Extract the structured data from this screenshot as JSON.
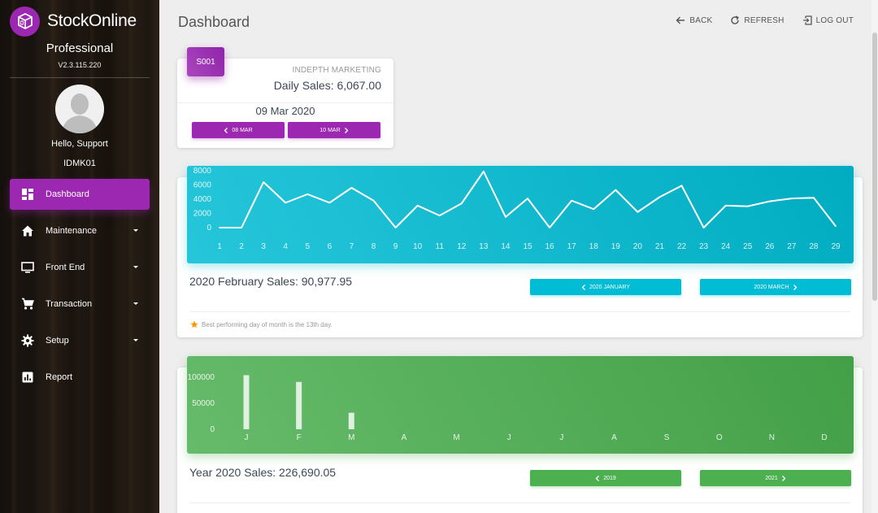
{
  "app": {
    "name": "StockOnline",
    "edition": "Professional",
    "version": "V2.3.115.220",
    "user_greeting": "Hello, Support",
    "user_id": "IDMK01"
  },
  "nav": {
    "items": [
      {
        "label": "Dashboard",
        "icon": "dashboard-icon",
        "active": true,
        "has_submenu": false
      },
      {
        "label": "Maintenance",
        "icon": "home-icon",
        "active": false,
        "has_submenu": true
      },
      {
        "label": "Front End",
        "icon": "monitor-icon",
        "active": false,
        "has_submenu": true
      },
      {
        "label": "Transaction",
        "icon": "cart-icon",
        "active": false,
        "has_submenu": true
      },
      {
        "label": "Setup",
        "icon": "gear-icon",
        "active": false,
        "has_submenu": true
      },
      {
        "label": "Report",
        "icon": "bar-chart-icon",
        "active": false,
        "has_submenu": false
      }
    ]
  },
  "header": {
    "title": "Dashboard",
    "actions": {
      "back": "BACK",
      "refresh": "REFRESH",
      "logout": "LOG OUT"
    }
  },
  "store": {
    "code": "S001",
    "name": "INDEPTH MARKETING",
    "daily_sales": "Daily Sales: 6,067.00",
    "date": "09 Mar 2020",
    "prev_label": "08 MAR",
    "next_label": "10 MAR"
  },
  "monthly": {
    "title": "2020 February Sales: 90,977.95",
    "prev_label": "2020 JANUARY",
    "next_label": "2020 MARCH",
    "footnote": "Best performing day of month is the 13th day."
  },
  "yearly": {
    "title": "Year 2020 Sales: 226,690.05",
    "prev_label": "2019",
    "next_label": "2021"
  },
  "colors": {
    "accent": "#9c27b0",
    "cyan": "#00bcd4",
    "green": "#4caf50"
  },
  "chart_data": [
    {
      "type": "line",
      "x": [
        1,
        2,
        3,
        4,
        5,
        6,
        7,
        8,
        9,
        10,
        11,
        12,
        13,
        14,
        15,
        16,
        17,
        18,
        19,
        20,
        21,
        22,
        23,
        24,
        25,
        26,
        27,
        28,
        29
      ],
      "series": [
        {
          "values": [
            0,
            0,
            6400,
            3500,
            4700,
            3500,
            5600,
            3800,
            0,
            3100,
            1700,
            3400,
            7900,
            1500,
            4100,
            0,
            3800,
            2600,
            5300,
            2200,
            4300,
            5900,
            0,
            3100,
            3000,
            3700,
            4100,
            4200,
            200
          ]
        }
      ],
      "yticks": [
        0,
        2000,
        4000,
        6000,
        8000
      ],
      "ylim": [
        0,
        8000
      ]
    },
    {
      "type": "bar",
      "categories": [
        "J",
        "F",
        "M",
        "A",
        "M",
        "J",
        "J",
        "A",
        "S",
        "O",
        "N",
        "D"
      ],
      "values": [
        104000,
        91000,
        31690,
        0,
        0,
        0,
        0,
        0,
        0,
        0,
        0,
        0
      ],
      "yticks": [
        0,
        50000,
        100000
      ],
      "ylim": [
        0,
        100000
      ]
    }
  ]
}
